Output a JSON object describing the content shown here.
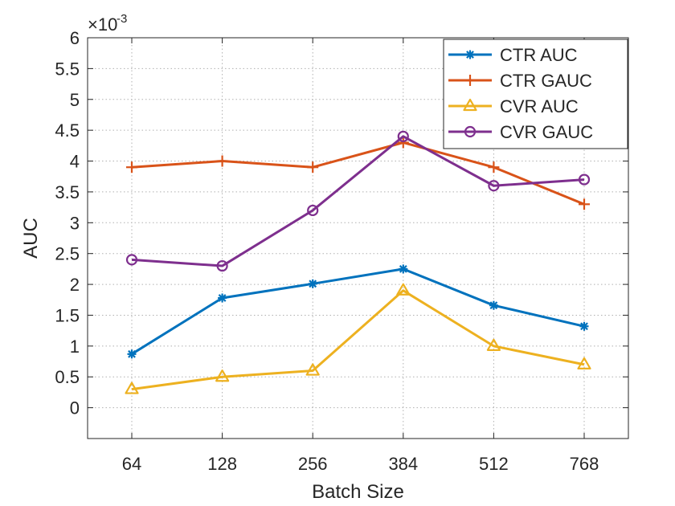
{
  "chart_data": {
    "type": "line",
    "title": "",
    "xlabel": "Batch Size",
    "ylabel": "AUC",
    "y_multiplier_label": "×10",
    "y_multiplier_exp": "-3",
    "categories": [
      "64",
      "128",
      "256",
      "384",
      "512",
      "768"
    ],
    "ylim": [
      -0.5,
      6
    ],
    "yticks": [
      0,
      0.5,
      1,
      1.5,
      2,
      2.5,
      3,
      3.5,
      4,
      4.5,
      5,
      5.5,
      6
    ],
    "ytick_labels": [
      "0",
      "0.5",
      "1",
      "1.5",
      "2",
      "2.5",
      "3",
      "3.5",
      "4",
      "4.5",
      "5",
      "5.5",
      "6"
    ],
    "grid": true,
    "legend_position": "top-right",
    "series": [
      {
        "name": "CTR AUC",
        "color": "#0072BD",
        "marker": "asterisk",
        "values": [
          0.87,
          1.78,
          2.01,
          2.25,
          1.66,
          1.32
        ]
      },
      {
        "name": "CTR GAUC",
        "color": "#D95319",
        "marker": "plus",
        "values": [
          3.9,
          4.0,
          3.9,
          4.3,
          3.9,
          3.3
        ]
      },
      {
        "name": "CVR AUC",
        "color": "#EDB120",
        "marker": "triangle",
        "values": [
          0.3,
          0.5,
          0.6,
          1.9,
          1.0,
          0.7
        ]
      },
      {
        "name": "CVR GAUC",
        "color": "#7E2F8E",
        "marker": "circle",
        "values": [
          2.4,
          2.3,
          3.2,
          4.4,
          3.6,
          3.7
        ]
      }
    ]
  }
}
